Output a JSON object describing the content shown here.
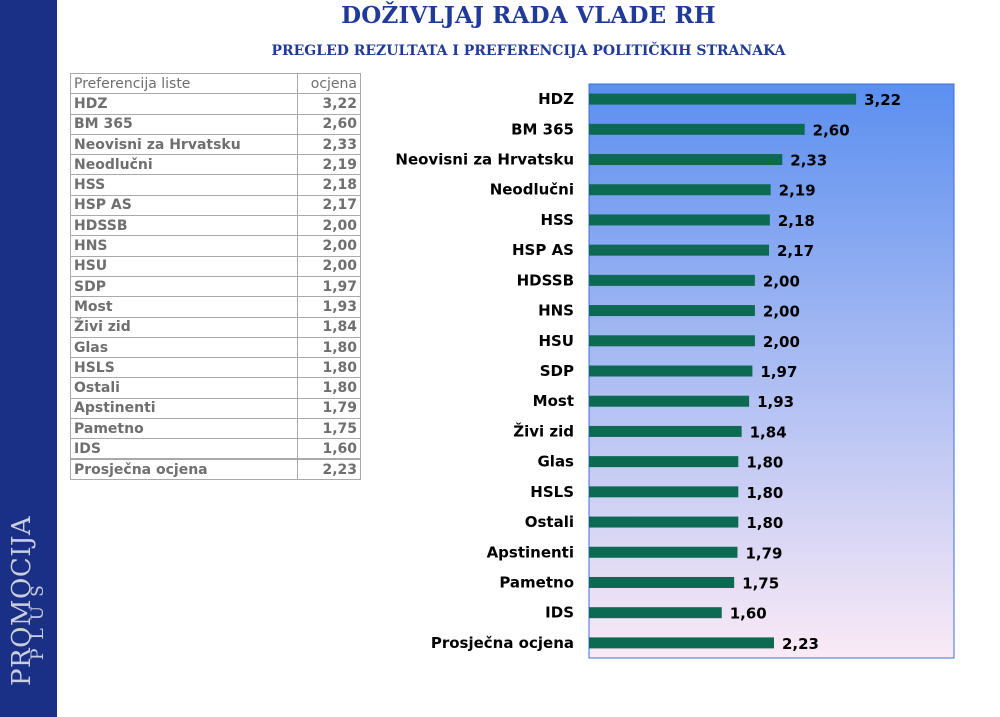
{
  "header": {
    "title": "DOŽIVLJAJ RADA VLADE RH",
    "subtitle": "PREGLED REZULTATA I PREFERENCIJA POLITIČKIH STRANAKA"
  },
  "logo": {
    "main": "PROMOCIJA",
    "sub": "PLUS"
  },
  "table": {
    "headers": [
      "Preferencija liste",
      "ocjena"
    ],
    "rows": [
      [
        "HDZ",
        "3,22"
      ],
      [
        "BM 365",
        "2,60"
      ],
      [
        "Neovisni za Hrvatsku",
        "2,33"
      ],
      [
        "Neodlučni",
        "2,19"
      ],
      [
        "HSS",
        "2,18"
      ],
      [
        "HSP AS",
        "2,17"
      ],
      [
        "HDSSB",
        "2,00"
      ],
      [
        "HNS",
        "2,00"
      ],
      [
        "HSU",
        "2,00"
      ],
      [
        "SDP",
        "1,97"
      ],
      [
        "Most",
        "1,93"
      ],
      [
        "Živi zid",
        "1,84"
      ],
      [
        "Glas",
        "1,80"
      ],
      [
        "HSLS",
        "1,80"
      ],
      [
        "Ostali",
        "1,80"
      ],
      [
        "Apstinenti",
        "1,79"
      ],
      [
        "Pametno",
        "1,75"
      ],
      [
        "IDS",
        "1,60"
      ],
      [
        "Prosječna ocjena",
        "2,23"
      ]
    ]
  },
  "chart_data": {
    "type": "bar",
    "orientation": "horizontal",
    "categories": [
      "HDZ",
      "BM 365",
      "Neovisni za Hrvatsku",
      "Neodlučni",
      "HSS",
      "HSP AS",
      "HDSSB",
      "HNS",
      "HSU",
      "SDP",
      "Most",
      "Živi zid",
      "Glas",
      "HSLS",
      "Ostali",
      "Apstinenti",
      "Pametno",
      "IDS",
      "Prosječna ocjena"
    ],
    "values": [
      3.22,
      2.6,
      2.33,
      2.19,
      2.18,
      2.17,
      2.0,
      2.0,
      2.0,
      1.97,
      1.93,
      1.84,
      1.8,
      1.8,
      1.8,
      1.79,
      1.75,
      1.6,
      2.23
    ],
    "value_labels": [
      "3,22",
      "2,60",
      "2,33",
      "2,19",
      "2,18",
      "2,17",
      "2,00",
      "2,00",
      "2,00",
      "1,97",
      "1,93",
      "1,84",
      "1,80",
      "1,80",
      "1,80",
      "1,79",
      "1,75",
      "1,60",
      "2,23"
    ],
    "xlim": [
      0,
      4.4
    ],
    "grid": false,
    "bar_color": "#0c6a53",
    "plot_gradient": [
      "#5b8ff0",
      "#fbeaf6"
    ]
  }
}
